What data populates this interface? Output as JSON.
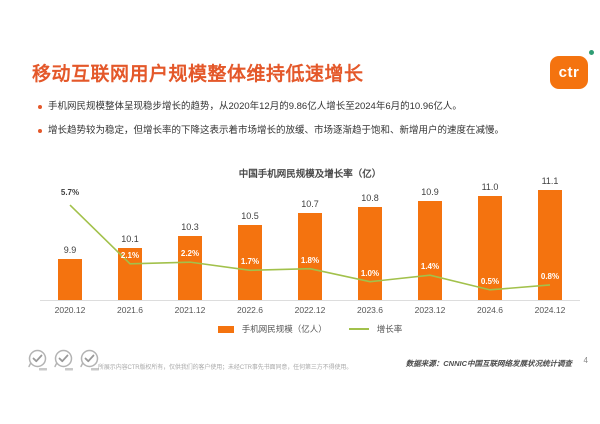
{
  "page": {
    "title": "移动互联网用户规模整体维持低速增长",
    "logo": {
      "text": "ctr"
    },
    "bullets": [
      "手机网民规模整体呈现稳步增长的趋势，从2020年12月的9.86亿人增长至2024年6月的10.96亿人。",
      "增长趋势较为稳定，但增长率的下降这表示着市场增长的放缓、市场逐渐趋于饱和、新增用户的速度在减慢。"
    ],
    "footer": {
      "disclaimer": "所展示内容CTR版权所有，仅供我们的客户使用；未经CTR事先书面同意，任何第三方不得使用。",
      "source": "数据来源：CNNIC中国互联网络发展状况统计调查",
      "page_number": "4"
    }
  },
  "colors": {
    "bar_orange": "#f4730f",
    "title_orange": "#e4582a",
    "line_green": "#a2c14b",
    "logo_green_dot": "#2e9d74"
  },
  "chart_data": {
    "type": "bar",
    "title": "中国手机网民规模及增长率（亿）",
    "categories": [
      "2020.12",
      "2021.6",
      "2021.12",
      "2022.6",
      "2022.12",
      "2023.6",
      "2023.12",
      "2024.6",
      "2024.12"
    ],
    "series": [
      {
        "name": "手机网民规模（亿人）",
        "type": "bar",
        "values": [
          9.9,
          10.1,
          10.3,
          10.5,
          10.7,
          10.8,
          10.9,
          11.0,
          11.1
        ]
      },
      {
        "name": "增长率",
        "type": "line",
        "values_pct": [
          5.7,
          2.1,
          2.2,
          1.7,
          1.8,
          1.0,
          1.4,
          0.5,
          0.8
        ]
      }
    ],
    "legend": [
      "手机网民规模（亿人）",
      "增长率"
    ],
    "bar_axis_min": 9.2,
    "grid": false,
    "legend_position": "bottom"
  }
}
